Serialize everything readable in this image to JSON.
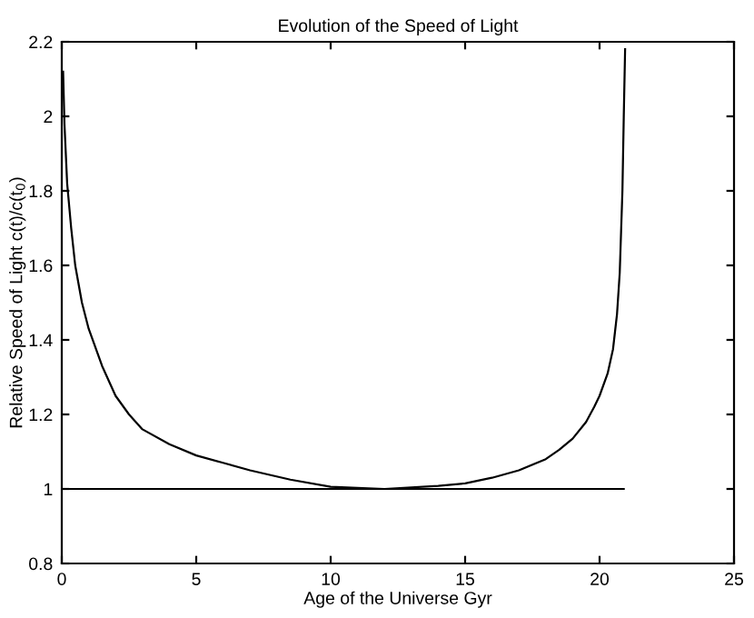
{
  "chart_data": {
    "type": "line",
    "title": "Evolution of the Speed of Light",
    "xlabel": "Age of the Universe Gyr",
    "ylabel": "Relative Speed of Light c(t)/c(t$_{0}$)",
    "series": [
      {
        "color": "#000000",
        "x": [
          0.05,
          0.1,
          0.2,
          0.35,
          0.5,
          0.75,
          1,
          1.5,
          2,
          2.5,
          3,
          4,
          5,
          6,
          7,
          8.5,
          10,
          12,
          14,
          15,
          16,
          17,
          18,
          18.5,
          19,
          19.5,
          19.8,
          20,
          20.3,
          20.5,
          20.65,
          20.75,
          20.85,
          20.9,
          20.95
        ],
        "values": [
          2.12,
          1.98,
          1.82,
          1.7,
          1.6,
          1.5,
          1.43,
          1.33,
          1.25,
          1.2,
          1.16,
          1.12,
          1.09,
          1.07,
          1.05,
          1.025,
          1.006,
          1.0,
          1.008,
          1.015,
          1.03,
          1.05,
          1.08,
          1.105,
          1.135,
          1.18,
          1.22,
          1.25,
          1.31,
          1.375,
          1.47,
          1.58,
          1.8,
          2.0,
          2.18
        ]
      },
      {
        "color": "#000000",
        "x": [
          0,
          20.9
        ],
        "values": [
          1,
          1
        ]
      }
    ],
    "xlim": [
      0,
      25
    ],
    "xticks": [
      0,
      5,
      10,
      15,
      20,
      25
    ],
    "ylim": [
      0.8,
      2.2
    ],
    "yticks": [
      0.8,
      1,
      1.2,
      1.4,
      1.6,
      1.8,
      2,
      2.2
    ],
    "grid": false,
    "legend": false,
    "line_style": "solid",
    "marker": "none"
  }
}
